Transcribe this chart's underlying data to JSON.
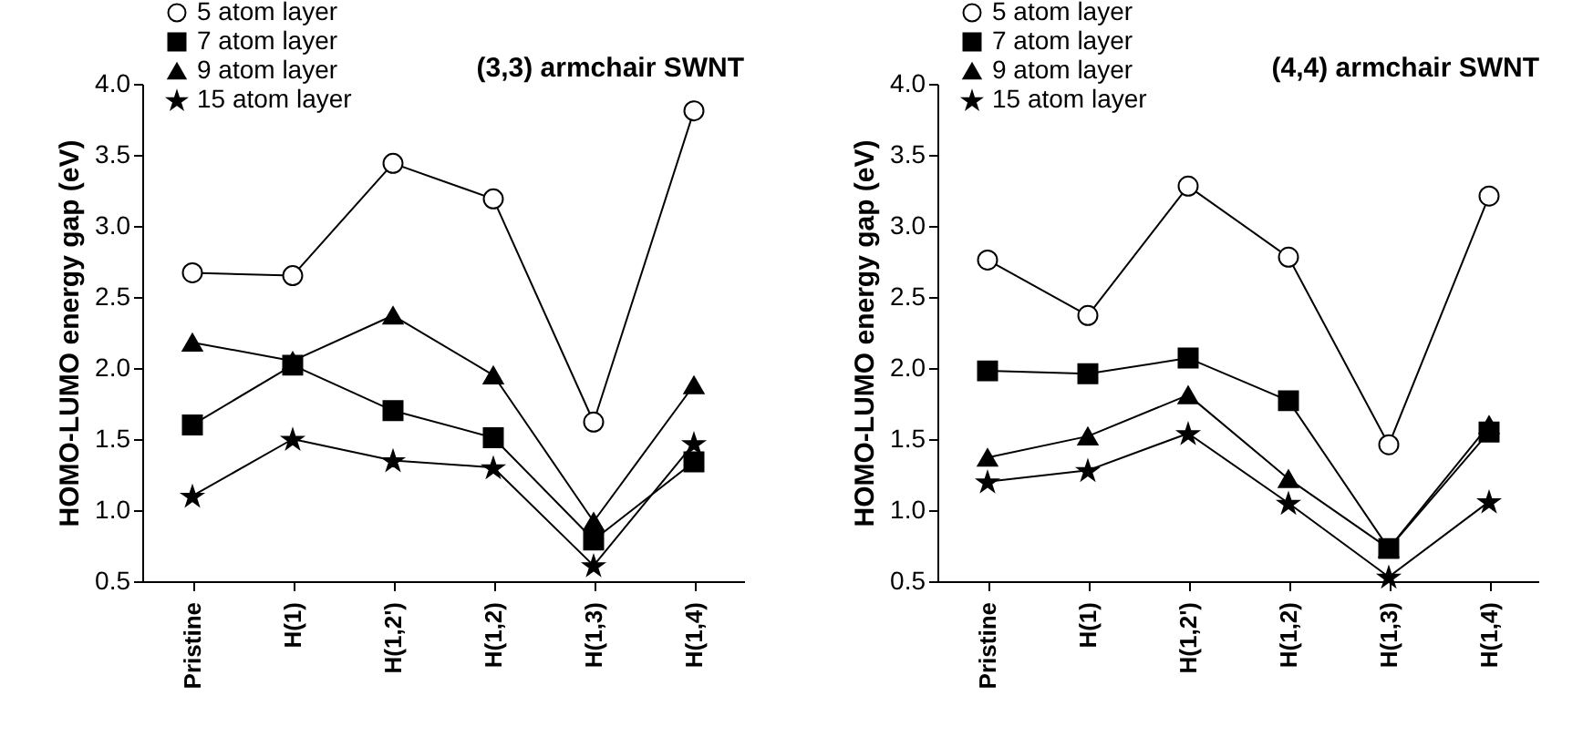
{
  "chart_data": [
    {
      "type": "line",
      "title": "(3,3) armchair SWNT",
      "ylabel": "HOMO-LUMO energy gap (eV)",
      "categories": [
        "Pristine",
        "H(1)",
        "H(1,2')",
        "H(1,2)",
        "H(1,3)",
        "H(1,4)"
      ],
      "ylim": [
        0.5,
        4.0
      ],
      "yticks": [
        0.5,
        {
          "value": 1,
          "label": "1.0"
        },
        1.5,
        {
          "value": 2,
          "label": "2.0"
        },
        2.5,
        {
          "value": 3,
          "label": "3.0"
        },
        3.5,
        {
          "value": 4,
          "label": "4.0"
        }
      ],
      "grid": false,
      "legend": "top left",
      "series": [
        {
          "name": "5 atom layer",
          "color": "#000000",
          "marker": "circle",
          "values": [
            2.67,
            2.65,
            3.44,
            3.19,
            1.62,
            3.81
          ]
        },
        {
          "name": "7 atom layer",
          "color": "#000000",
          "marker": "square",
          "values": [
            1.6,
            2.02,
            1.7,
            1.51,
            0.79,
            1.34
          ]
        },
        {
          "name": "9 atom layer",
          "color": "#000000",
          "marker": "triangle",
          "values": [
            2.18,
            2.05,
            2.37,
            1.95,
            0.92,
            1.88
          ]
        },
        {
          "name": "15 atom layer",
          "color": "#000000",
          "marker": "star",
          "values": [
            1.1,
            1.5,
            1.35,
            1.3,
            0.61,
            1.47
          ]
        }
      ]
    },
    {
      "type": "line",
      "title": "(4,4) armchair SWNT",
      "ylabel": "HOMO-LUMO energy gap (eV)",
      "categories": [
        "Pristine",
        "H(1)",
        "H(1,2')",
        "H(1,2)",
        "H(1,3)",
        "H(1,4)"
      ],
      "ylim": [
        0.5,
        4.0
      ],
      "yticks": [
        0.5,
        {
          "value": 1,
          "label": "1.0"
        },
        1.5,
        {
          "value": 2,
          "label": "2.0"
        },
        2.5,
        {
          "value": 3,
          "label": "3.0"
        },
        3.5,
        {
          "value": 4,
          "label": "4.0"
        }
      ],
      "grid": false,
      "legend": "top left",
      "series": [
        {
          "name": "5 atom layer",
          "color": "#000000",
          "marker": "circle",
          "values": [
            2.76,
            2.37,
            3.28,
            2.78,
            1.46,
            3.21
          ]
        },
        {
          "name": "7 atom layer",
          "color": "#000000",
          "marker": "square",
          "values": [
            1.98,
            1.96,
            2.07,
            1.77,
            0.73,
            1.55
          ]
        },
        {
          "name": "9 atom layer",
          "color": "#000000",
          "marker": "triangle",
          "values": [
            1.37,
            1.52,
            1.81,
            1.22,
            0.73,
            1.6
          ]
        },
        {
          "name": "15 atom layer",
          "color": "#000000",
          "marker": "star",
          "values": [
            1.2,
            1.28,
            1.54,
            1.05,
            0.53,
            1.06
          ]
        }
      ]
    }
  ]
}
